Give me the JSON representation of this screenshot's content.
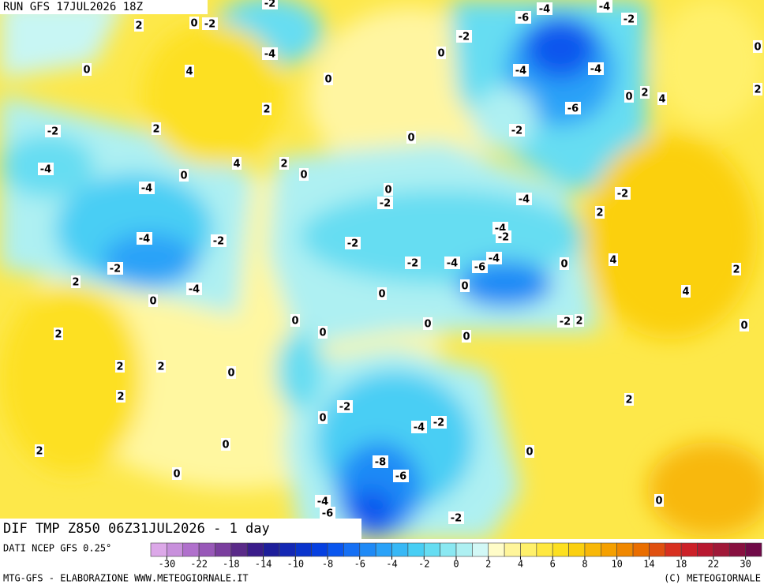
{
  "header": {
    "run": "RUN GFS 17JUL2026 18Z",
    "product": "DIF TMP Z850 06Z31JUL2026 - 1 day",
    "source": "DATI NCEP GFS 0.25°",
    "credit": "MTG-GFS - ELABORAZIONE WWW.METEOGIORNALE.IT",
    "copyright": "(C) METEOGIORNALE"
  },
  "colorbar": {
    "ticks": [
      -30,
      -22,
      -18,
      -14,
      -10,
      -8,
      -6,
      -4,
      -2,
      0,
      2,
      4,
      6,
      8,
      10,
      14,
      18,
      22,
      30
    ],
    "colors": [
      "#dca8e8",
      "#c890dc",
      "#b070cc",
      "#9858b8",
      "#7a3e9e",
      "#5a2a88",
      "#3a1c8a",
      "#1e1e9a",
      "#1428b4",
      "#0a34cc",
      "#0640e0",
      "#0a56ee",
      "#1670f4",
      "#1f8af6",
      "#2aa2f8",
      "#38b8f6",
      "#48cef4",
      "#66ddf2",
      "#8ae8f2",
      "#aef0f2",
      "#d2f8f6",
      "#fffcc8",
      "#fff59a",
      "#fff06a",
      "#ffe840",
      "#fde020",
      "#fbd010",
      "#f8b808",
      "#f5a000",
      "#f08800",
      "#ea6e00",
      "#e05010",
      "#d83020",
      "#cc2028",
      "#b81830",
      "#a01838",
      "#881040",
      "#700a48"
    ]
  },
  "contour_labels": [
    2,
    0,
    -2,
    -2,
    -4,
    0,
    4,
    0,
    2,
    2,
    -2,
    -4,
    4,
    2,
    0,
    -4,
    0,
    0,
    0,
    -2,
    -4,
    -2,
    -2,
    2,
    -4,
    0,
    -2,
    -2,
    -4,
    -6,
    -4,
    -4,
    -2,
    -4,
    0,
    0,
    0,
    4,
    2,
    -2,
    2,
    4,
    -2,
    2,
    0,
    0,
    0,
    0,
    0,
    2,
    2,
    2,
    0,
    2,
    2,
    0,
    -2,
    -4,
    -2,
    0,
    2,
    0,
    0,
    -8,
    -6,
    -4,
    -6,
    -2,
    0,
    -6,
    -4,
    -4,
    -2,
    -2,
    0,
    -4,
    -4,
    -6,
    -2,
    0,
    2,
    4,
    0,
    2
  ]
}
